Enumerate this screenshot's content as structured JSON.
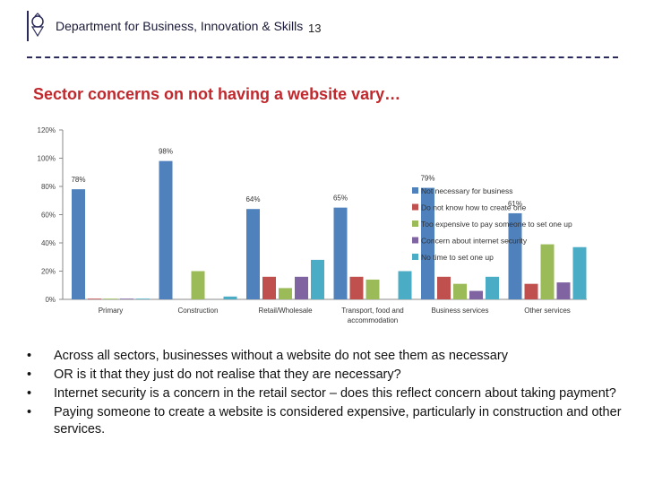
{
  "header": {
    "department": "Department for Business, Innovation & Skills",
    "page_number": "13"
  },
  "slide": {
    "title": "Sector concerns on not having a website vary…"
  },
  "colors": {
    "title": "#c0282d",
    "series": [
      "#4f81bd",
      "#c0504d",
      "#9bbb59",
      "#8064a2",
      "#4bacc6"
    ]
  },
  "chart_data": {
    "type": "bar",
    "categories": [
      "Primary",
      "Construction",
      "Retail/Wholesale",
      "Transport, food and accommodation",
      "Business services",
      "Other services"
    ],
    "category_lines": [
      [
        "Primary"
      ],
      [
        "Construction"
      ],
      [
        "Retail/Wholesale"
      ],
      [
        "Transport, food and",
        "accommodation"
      ],
      [
        "Business services"
      ],
      [
        "Other services"
      ]
    ],
    "series": [
      {
        "name": "Not necessary for business",
        "values": [
          78,
          98,
          64,
          65,
          79,
          61
        ],
        "labels": [
          "78%",
          "98%",
          "64%",
          "65%",
          "79%",
          "61%"
        ]
      },
      {
        "name": "Do not know how to create one",
        "values": [
          0.5,
          0,
          16,
          16,
          16,
          11
        ]
      },
      {
        "name": "Too expensive to pay someone to set one up",
        "values": [
          0.5,
          20,
          8,
          14,
          11,
          39
        ]
      },
      {
        "name": "Concern about internet security",
        "values": [
          0.5,
          0,
          16,
          0,
          6,
          12
        ]
      },
      {
        "name": "No time to set one up",
        "values": [
          0.5,
          2,
          28,
          20,
          16,
          37
        ]
      }
    ],
    "ylim": [
      0,
      120
    ],
    "yticks": [
      0,
      20,
      40,
      60,
      80,
      100,
      120
    ],
    "ytick_labels": [
      "0%",
      "20%",
      "40%",
      "60%",
      "80%",
      "100%",
      "120%"
    ],
    "grid": false,
    "legend_position": "right"
  },
  "bullets": [
    "Across all sectors, businesses without a website do not see them as necessary",
    "OR is it that they just do not realise that they are necessary?",
    "Internet security is a concern in the retail sector – does this reflect concern about taking payment?",
    "Paying someone to create a website is considered expensive, particularly in construction and other services."
  ],
  "bullet_char": "•"
}
